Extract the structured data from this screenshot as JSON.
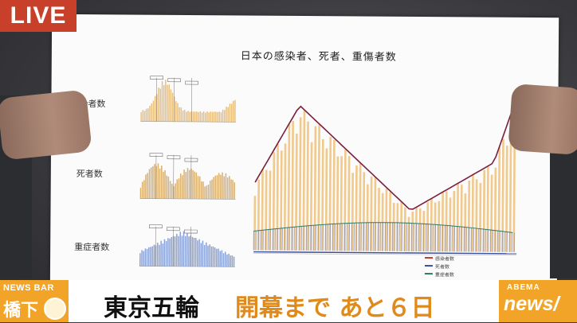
{
  "overlay": {
    "live_badge": "LIVE"
  },
  "paper": {
    "title": "日本の感染者、死者、重傷者数",
    "rows": [
      {
        "label": "感染者数",
        "color": "#e9bf7d"
      },
      {
        "label": "死者数",
        "color": "#d9b070"
      },
      {
        "label": "重症者数",
        "color": "#8aa2d6"
      }
    ],
    "big_chart": {
      "legend": [
        {
          "label": "感染者数",
          "color": "#c0392b"
        },
        {
          "label": "死者数",
          "color": "#3a4f9a"
        },
        {
          "label": "重症者数",
          "color": "#2d7a6a"
        }
      ]
    }
  },
  "ticker": {
    "logo_top": "NEWS BAR",
    "logo_bottom": "橋下",
    "headline_part1": "東京五輪",
    "headline_part2": "開幕まで あと６日",
    "brand_top": "ABEMA",
    "brand_bottom": "news/"
  }
}
